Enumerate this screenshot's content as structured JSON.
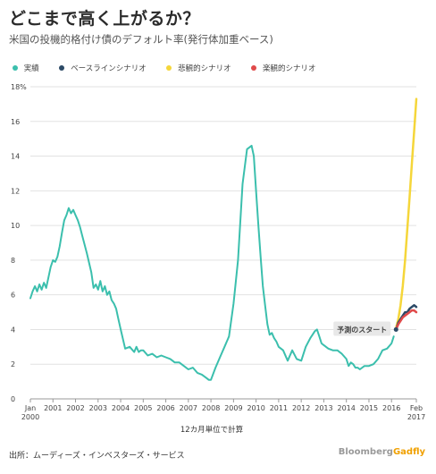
{
  "chart_data": {
    "type": "line",
    "title": "どこまで高く上がるか？",
    "subtitle": "米国の投機的格付け債のデフォルト率(発行体加重ベース)",
    "xlabel": "12カ月単位で計算",
    "ylabel": "",
    "ylim": [
      0,
      18
    ],
    "yticks": [
      0,
      2,
      4,
      6,
      8,
      10,
      12,
      14,
      16,
      18
    ],
    "ytick_labels": [
      "0",
      "2",
      "4",
      "6",
      "8",
      "10",
      "12",
      "14",
      "16",
      "18%"
    ],
    "xlim": [
      2000,
      2017.1
    ],
    "xticks": [
      {
        "x": 2000,
        "l1": "Jan",
        "l2": "2000"
      },
      {
        "x": 2001,
        "l1": "2001",
        "l2": ""
      },
      {
        "x": 2002,
        "l1": "2002",
        "l2": ""
      },
      {
        "x": 2003,
        "l1": "2003",
        "l2": ""
      },
      {
        "x": 2004,
        "l1": "2004",
        "l2": ""
      },
      {
        "x": 2005,
        "l1": "2005",
        "l2": ""
      },
      {
        "x": 2006,
        "l1": "2006",
        "l2": ""
      },
      {
        "x": 2007,
        "l1": "2007",
        "l2": ""
      },
      {
        "x": 2008,
        "l1": "2008",
        "l2": ""
      },
      {
        "x": 2009,
        "l1": "2009",
        "l2": ""
      },
      {
        "x": 2010,
        "l1": "2010",
        "l2": ""
      },
      {
        "x": 2011,
        "l1": "2011",
        "l2": ""
      },
      {
        "x": 2012,
        "l1": "2012",
        "l2": ""
      },
      {
        "x": 2013,
        "l1": "2013",
        "l2": ""
      },
      {
        "x": 2014,
        "l1": "2014",
        "l2": ""
      },
      {
        "x": 2015,
        "l1": "2015",
        "l2": ""
      },
      {
        "x": 2016,
        "l1": "2016",
        "l2": ""
      },
      {
        "x": 2017.1,
        "l1": "Feb",
        "l2": "2017"
      }
    ],
    "grid": true,
    "legend_position": "top-left",
    "annotation": {
      "text": "予測のスタート",
      "x": 2016.2,
      "y": 4.0
    },
    "series": [
      {
        "name": "実績",
        "color": "#3bbfad",
        "x": [
          2000.0,
          2000.1,
          2000.2,
          2000.3,
          2000.4,
          2000.5,
          2000.6,
          2000.7,
          2000.8,
          2000.9,
          2001.0,
          2001.1,
          2001.2,
          2001.3,
          2001.4,
          2001.5,
          2001.6,
          2001.7,
          2001.8,
          2001.9,
          2002.0,
          2002.1,
          2002.2,
          2002.3,
          2002.5,
          2002.7,
          2002.8,
          2002.9,
          2003.0,
          2003.1,
          2003.2,
          2003.3,
          2003.4,
          2003.5,
          2003.6,
          2003.7,
          2003.8,
          2003.9,
          2004.0,
          2004.2,
          2004.4,
          2004.6,
          2004.7,
          2004.8,
          2004.9,
          2005.0,
          2005.2,
          2005.4,
          2005.6,
          2005.8,
          2006.0,
          2006.2,
          2006.4,
          2006.6,
          2006.8,
          2007.0,
          2007.2,
          2007.4,
          2007.6,
          2007.8,
          2007.9,
          2008.0,
          2008.2,
          2008.4,
          2008.6,
          2008.8,
          2009.0,
          2009.2,
          2009.4,
          2009.6,
          2009.8,
          2009.9,
          2010.0,
          2010.1,
          2010.2,
          2010.3,
          2010.4,
          2010.5,
          2010.6,
          2010.7,
          2010.8,
          2010.9,
          2011.0,
          2011.2,
          2011.4,
          2011.6,
          2011.8,
          2012.0,
          2012.2,
          2012.4,
          2012.5,
          2012.6,
          2012.7,
          2012.8,
          2012.9,
          2013.0,
          2013.2,
          2013.4,
          2013.6,
          2013.8,
          2014.0,
          2014.1,
          2014.2,
          2014.3,
          2014.4,
          2014.5,
          2014.6,
          2014.8,
          2015.0,
          2015.2,
          2015.4,
          2015.6,
          2015.8,
          2016.0,
          2016.1
        ],
        "values": [
          5.8,
          6.2,
          6.5,
          6.2,
          6.6,
          6.3,
          6.7,
          6.4,
          7.0,
          7.6,
          8.0,
          7.9,
          8.2,
          8.8,
          9.6,
          10.3,
          10.6,
          11.0,
          10.7,
          10.9,
          10.6,
          10.3,
          9.9,
          9.4,
          8.4,
          7.3,
          6.4,
          6.6,
          6.3,
          6.8,
          6.2,
          6.5,
          6.0,
          6.2,
          5.7,
          5.5,
          5.2,
          4.6,
          4.0,
          2.9,
          3.0,
          2.7,
          3.0,
          2.7,
          2.8,
          2.8,
          2.5,
          2.6,
          2.4,
          2.5,
          2.4,
          2.3,
          2.1,
          2.1,
          1.9,
          1.7,
          1.8,
          1.5,
          1.4,
          1.2,
          1.1,
          1.1,
          1.8,
          2.4,
          3.0,
          3.6,
          5.5,
          8.0,
          12.4,
          14.4,
          14.6,
          14.0,
          12.0,
          10.0,
          8.2,
          6.5,
          5.4,
          4.3,
          3.7,
          3.8,
          3.5,
          3.3,
          3.0,
          2.8,
          2.2,
          2.8,
          2.3,
          2.2,
          3.0,
          3.5,
          3.7,
          3.9,
          4.0,
          3.6,
          3.2,
          3.1,
          2.9,
          2.8,
          2.8,
          2.6,
          2.3,
          1.9,
          2.1,
          2.0,
          1.8,
          1.8,
          1.7,
          1.9,
          1.9,
          2.0,
          2.3,
          2.8,
          2.9,
          3.2,
          3.6
        ]
      },
      {
        "name": "ベースラインシナリオ",
        "color": "#2c4a66",
        "x": [
          2016.2,
          2016.3,
          2016.4,
          2016.5,
          2016.6,
          2016.7,
          2016.8,
          2016.9,
          2017.0,
          2017.1
        ],
        "values": [
          4.0,
          4.4,
          4.6,
          4.8,
          5.0,
          5.0,
          5.2,
          5.3,
          5.4,
          5.3
        ]
      },
      {
        "name": "悲観的シナリオ",
        "color": "#f5d63a",
        "x": [
          2016.2,
          2016.3,
          2016.4,
          2016.5,
          2016.6,
          2016.7,
          2016.8,
          2016.9,
          2017.0,
          2017.1
        ],
        "values": [
          4.1,
          4.6,
          5.4,
          6.5,
          8.0,
          9.8,
          11.6,
          13.5,
          15.4,
          17.3
        ]
      },
      {
        "name": "楽観的シナリオ",
        "color": "#e04a4a",
        "x": [
          2016.2,
          2016.3,
          2016.4,
          2016.5,
          2016.6,
          2016.7,
          2016.8,
          2016.9,
          2017.0,
          2017.1
        ],
        "values": [
          4.0,
          4.3,
          4.5,
          4.7,
          4.8,
          4.9,
          5.0,
          5.1,
          5.1,
          5.0
        ]
      }
    ]
  },
  "footer": {
    "source": "出所：ムーディーズ・インベスターズ・サービス",
    "brand_main": "Bloomberg",
    "brand_accent": "Gadfly"
  }
}
